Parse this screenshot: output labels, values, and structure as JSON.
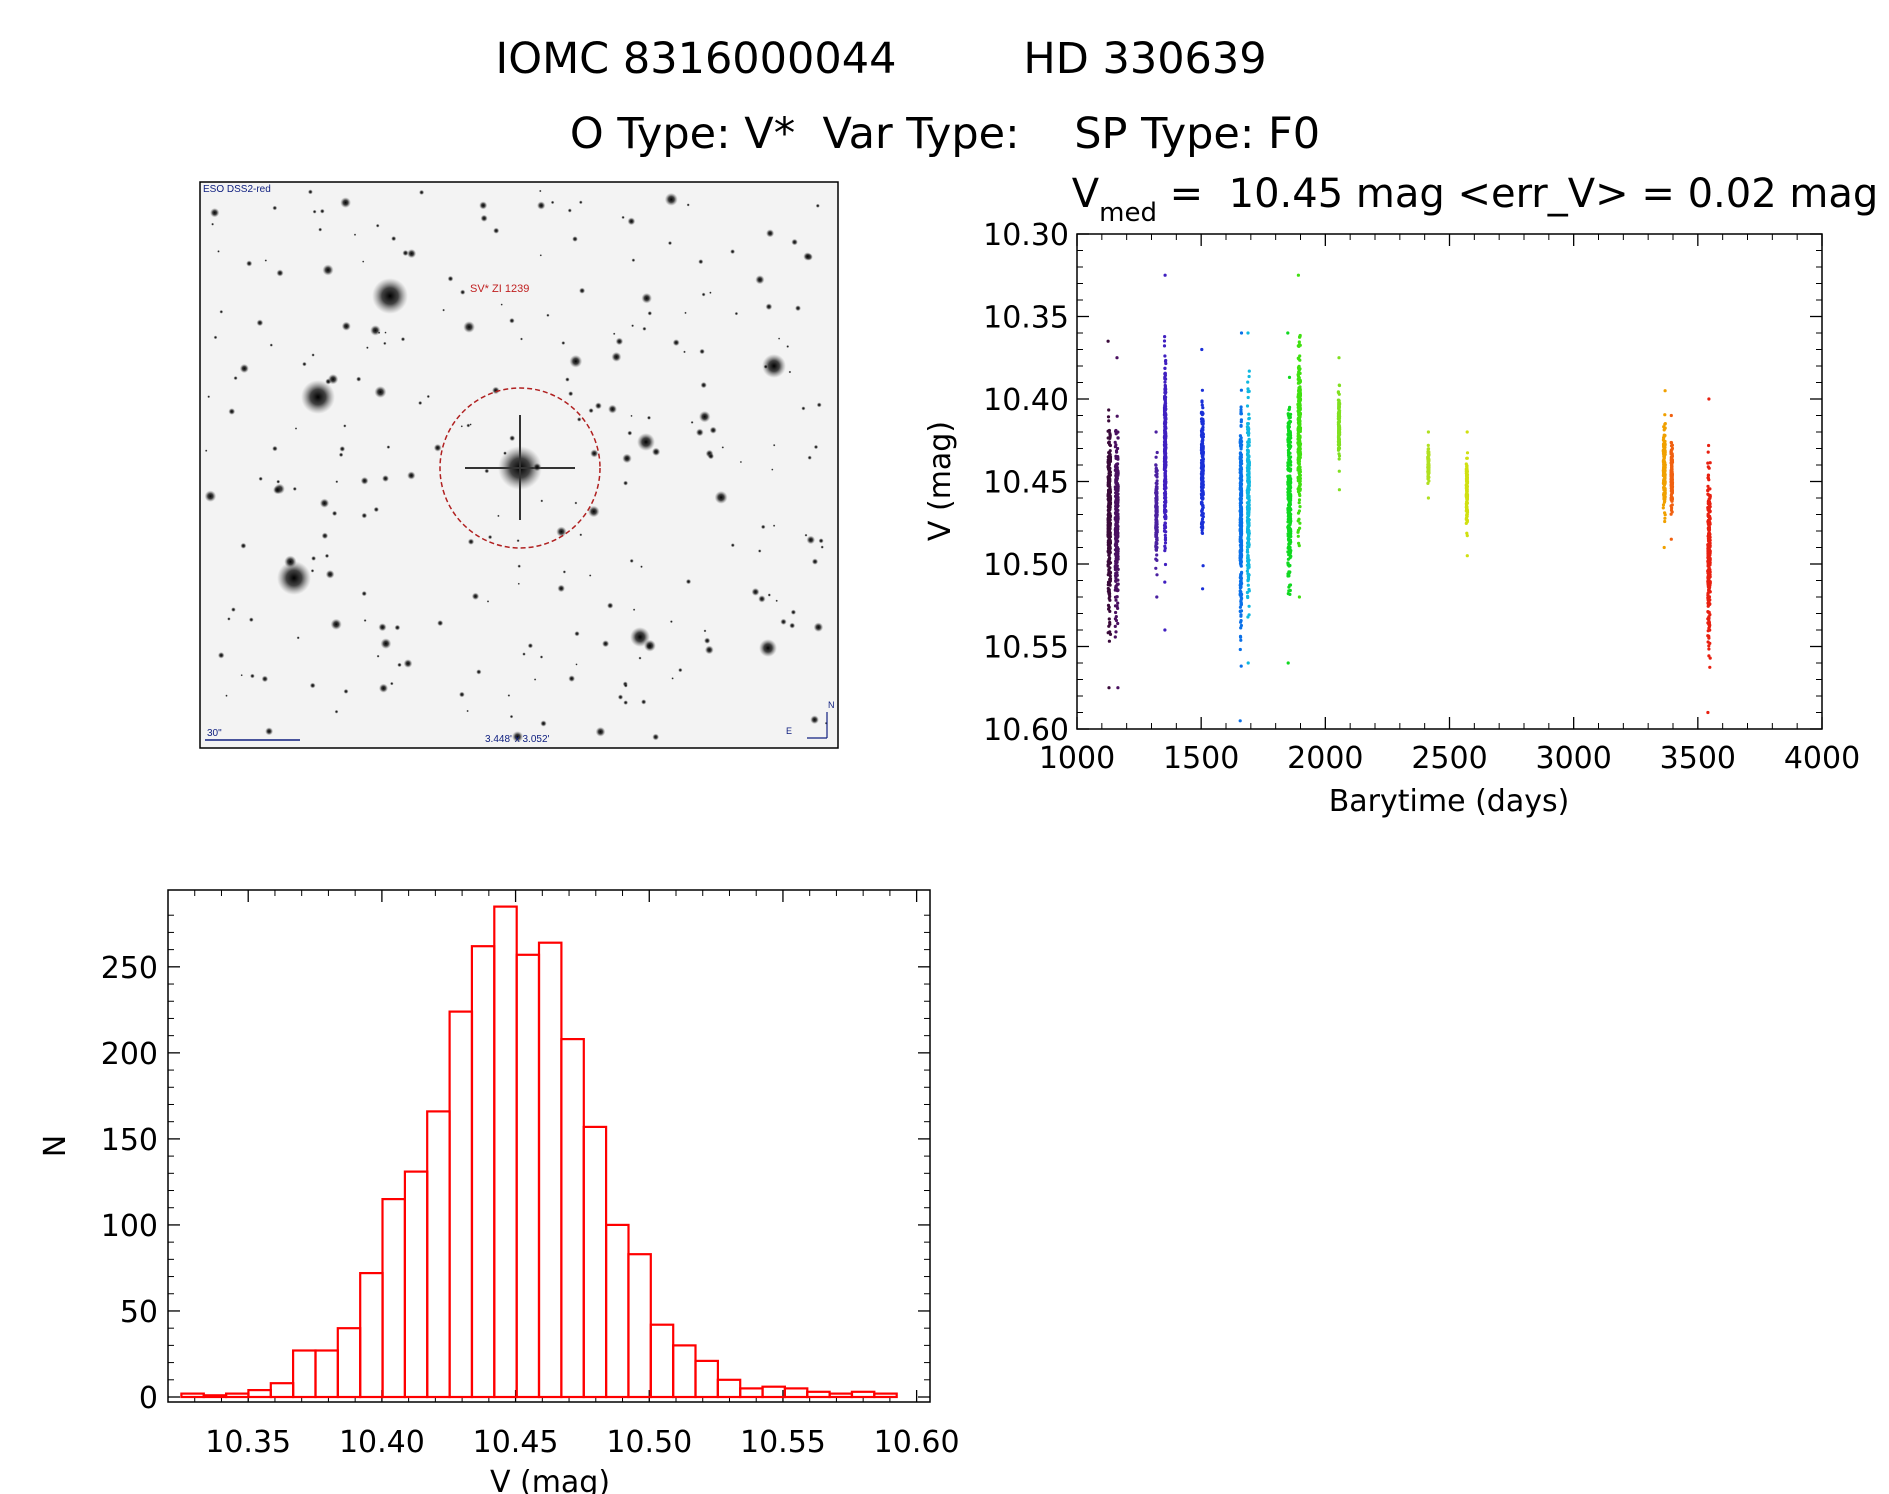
{
  "header": {
    "title_line1_left": "IOMC 8316000044",
    "title_line1_right": "HD 330639",
    "title_line2": "O Type: V*  Var Type:    SP Type: F0"
  },
  "image_panel": {
    "survey_label": "ESO DSS2-red",
    "object_label": "SV* ZI 1239",
    "scale_label": "30\"",
    "fov_label": "3.448' x 3.052'",
    "north_label": "N",
    "east_label": "E"
  },
  "chart_data": [
    {
      "type": "scatter",
      "title_prefix": "V",
      "title_subscript": "med",
      "title_rest": " =  10.45 mag <err_V> = 0.02 mag",
      "xlabel": "Barytime (days)",
      "ylabel": "V (mag)",
      "xlim": [
        1000,
        4000
      ],
      "ylim": [
        10.6,
        10.3
      ],
      "y_inverted": true,
      "xticks": [
        "1000",
        "1500",
        "2000",
        "2500",
        "3000",
        "3500",
        "4000"
      ],
      "yticks": [
        "10.30",
        "10.35",
        "10.40",
        "10.45",
        "10.50",
        "10.55",
        "10.60"
      ],
      "groups": [
        {
          "x": 1130,
          "xw": 10,
          "ymin": 10.365,
          "ymax": 10.575,
          "color": "#3a0a3a"
        },
        {
          "x": 1160,
          "xw": 12,
          "ymin": 10.375,
          "ymax": 10.575,
          "color": "#4a1060"
        },
        {
          "x": 1320,
          "xw": 6,
          "ymin": 10.42,
          "ymax": 10.52,
          "color": "#4a20a0"
        },
        {
          "x": 1355,
          "xw": 6,
          "ymin": 10.325,
          "ymax": 10.54,
          "color": "#4020c0"
        },
        {
          "x": 1505,
          "xw": 8,
          "ymin": 10.37,
          "ymax": 10.515,
          "color": "#1a30d8"
        },
        {
          "x": 1660,
          "xw": 6,
          "ymin": 10.36,
          "ymax": 10.595,
          "color": "#0a70e8"
        },
        {
          "x": 1690,
          "xw": 8,
          "ymin": 10.36,
          "ymax": 10.56,
          "color": "#10b8e0"
        },
        {
          "x": 1855,
          "xw": 12,
          "ymin": 10.36,
          "ymax": 10.56,
          "color": "#10d820"
        },
        {
          "x": 1895,
          "xw": 10,
          "ymin": 10.325,
          "ymax": 10.52,
          "color": "#40e010"
        },
        {
          "x": 2055,
          "xw": 5,
          "ymin": 10.375,
          "ymax": 10.455,
          "color": "#80e020"
        },
        {
          "x": 2415,
          "xw": 5,
          "ymin": 10.42,
          "ymax": 10.46,
          "color": "#b0e020"
        },
        {
          "x": 2570,
          "xw": 5,
          "ymin": 10.42,
          "ymax": 10.495,
          "color": "#d0e010"
        },
        {
          "x": 3365,
          "xw": 8,
          "ymin": 10.395,
          "ymax": 10.49,
          "color": "#f0a000"
        },
        {
          "x": 3395,
          "xw": 6,
          "ymin": 10.41,
          "ymax": 10.485,
          "color": "#f06010"
        },
        {
          "x": 3545,
          "xw": 10,
          "ymin": 10.4,
          "ymax": 10.59,
          "color": "#e82010"
        }
      ]
    },
    {
      "type": "bar",
      "xlabel": "V (mag)",
      "ylabel": "N",
      "xlim": [
        10.32,
        10.605
      ],
      "ylim": [
        0,
        290
      ],
      "xticks": [
        "10.35",
        "10.40",
        "10.45",
        "10.50",
        "10.55",
        "10.60"
      ],
      "yticks": [
        "0",
        "50",
        "100",
        "150",
        "200",
        "250"
      ],
      "bin_start": 10.325,
      "bin_width": 0.00836,
      "values": [
        2,
        1,
        2,
        4,
        8,
        27,
        27,
        40,
        72,
        115,
        131,
        166,
        224,
        262,
        285,
        257,
        264,
        208,
        157,
        100,
        83,
        42,
        30,
        21,
        10,
        5,
        6,
        5,
        3,
        2,
        3,
        2
      ],
      "color": "#ff0000"
    }
  ]
}
